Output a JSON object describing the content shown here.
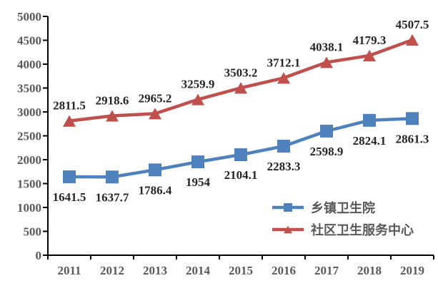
{
  "chart_data": {
    "type": "line",
    "title": "",
    "xlabel": "",
    "ylabel": "",
    "categories": [
      "2011",
      "2012",
      "2013",
      "2014",
      "2015",
      "2016",
      "2017",
      "2018",
      "2019"
    ],
    "series": [
      {
        "name": "乡镇卫生院",
        "values": [
          1641.5,
          1637.7,
          1786.4,
          1954,
          2104.1,
          2283.3,
          2598.9,
          2824.1,
          2861.3
        ],
        "labels": [
          "1641.5",
          "1637.7",
          "1786.4",
          "1954",
          "2104.1",
          "2283.3",
          "2598.9",
          "2824.1",
          "2861.3"
        ],
        "color": "#4F81BD",
        "marker": "square",
        "label_position": "below"
      },
      {
        "name": "社区卫生服务中心",
        "values": [
          2811.5,
          2918.6,
          2965.2,
          3259.9,
          3503.2,
          3712.1,
          4038.1,
          4179.3,
          4507.5
        ],
        "labels": [
          "2811.5",
          "2918.6",
          "2965.2",
          "3259.9",
          "3503.2",
          "3712.1",
          "4038.1",
          "4179.3",
          "4507.5"
        ],
        "color": "#C0504D",
        "marker": "triangle",
        "label_position": "above"
      }
    ],
    "ylim": [
      0,
      5000
    ],
    "ytick_step": 500,
    "grid": false,
    "legend_position": "inside-right-lower"
  },
  "colors": {
    "axis": "#000000",
    "axis_tick_label": "#595959",
    "data_label": "#262626",
    "legend_text": "#595959",
    "background": "#ffffff"
  }
}
